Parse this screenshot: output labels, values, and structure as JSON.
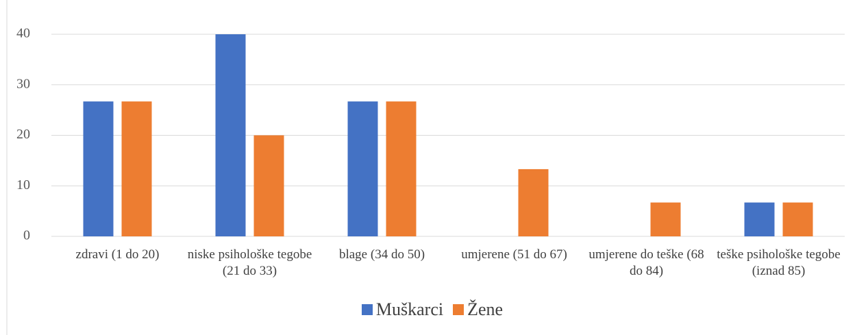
{
  "chart_data": {
    "type": "bar",
    "categories": [
      "zdravi (1 do 20)",
      "niske psihološke tegobe (21 do 33)",
      "blage (34 do 50)",
      "umjerene (51 do 67)",
      "umjerene do teške (68 do 84)",
      "teške psihološke tegobe (iznad 85)"
    ],
    "series": [
      {
        "name": "Muškarci",
        "color": "#4472c4",
        "values": [
          26.7,
          40,
          26.7,
          0,
          0,
          6.7
        ]
      },
      {
        "name": "Žene",
        "color": "#ed7d31",
        "values": [
          26.7,
          20,
          26.7,
          13.3,
          6.7,
          6.7
        ]
      }
    ],
    "ylim": [
      0,
      40
    ],
    "yticks": [
      0,
      10,
      20,
      30,
      40
    ],
    "grid": true,
    "legend": "bottom"
  }
}
